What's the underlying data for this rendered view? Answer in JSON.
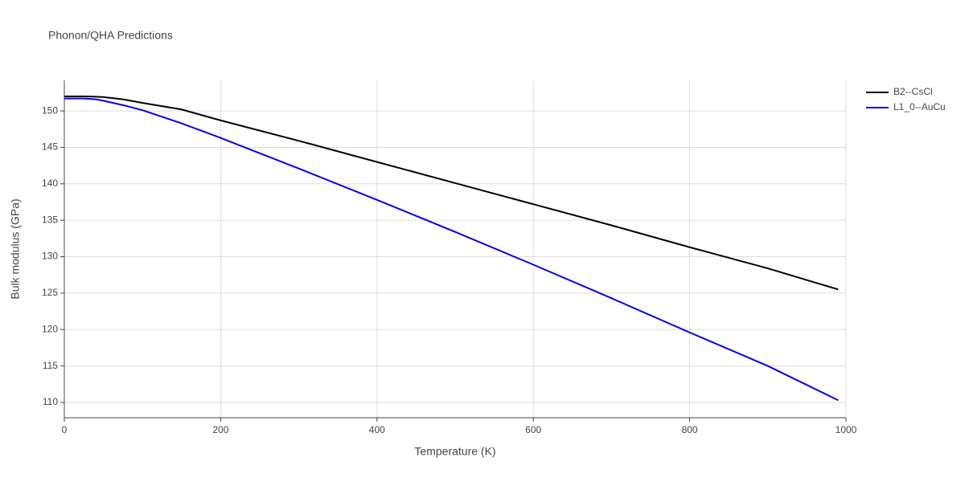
{
  "chart_data": {
    "type": "line",
    "title": "Phonon/QHA Predictions",
    "x_label": "Temperature (K)",
    "y_label": "Bulk modulus (GPa)",
    "xlim": [
      0,
      1000
    ],
    "xticks": [
      0,
      200,
      400,
      600,
      800,
      1000
    ],
    "ylim": [
      107.9,
      154.2
    ],
    "yticks": [
      110,
      115,
      120,
      125,
      130,
      135,
      140,
      145,
      150
    ],
    "grid": true,
    "legend": "top-right",
    "x": [
      0,
      25,
      40,
      50,
      75,
      100,
      150,
      200,
      300,
      400,
      500,
      600,
      700,
      800,
      900,
      990
    ],
    "series": [
      {
        "name": "B2--CsCl",
        "color": "#000000",
        "values": [
          152.0,
          152.0,
          151.95,
          151.9,
          151.6,
          151.1,
          150.2,
          148.7,
          145.9,
          143.0,
          140.1,
          137.2,
          134.3,
          131.3,
          128.4,
          125.5
        ]
      },
      {
        "name": "L1_0--AuCu",
        "color": "#0000ee",
        "values": [
          151.7,
          151.7,
          151.6,
          151.4,
          150.8,
          150.1,
          148.3,
          146.3,
          142.1,
          137.8,
          133.4,
          128.9,
          124.3,
          119.6,
          115.0,
          110.3
        ]
      }
    ]
  }
}
